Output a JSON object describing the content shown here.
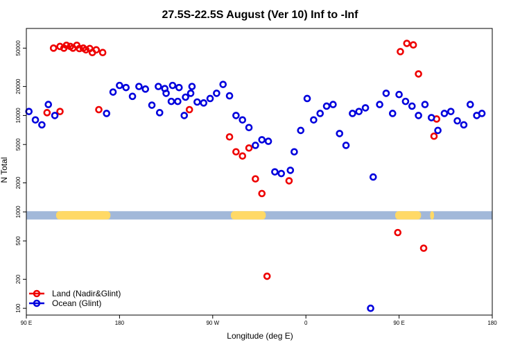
{
  "chart_data": {
    "type": "scatter",
    "title": "27.5S-22.5S August (Ver 10)   Inf to -Inf",
    "xlabel": "Longitude (deg E)",
    "ylabel": "N Total",
    "y_scale": "log",
    "ylim": [
      85,
      80000
    ],
    "x_ticks": [
      "90 E",
      "180",
      "90 W",
      "0",
      "90 E",
      "180"
    ],
    "y_ticks": [
      "100",
      "200",
      "500",
      "1000",
      "2000",
      "5000",
      "10000",
      "20000",
      "50000"
    ],
    "y_tick_values": [
      100,
      200,
      500,
      1000,
      2000,
      5000,
      10000,
      20000,
      50000
    ],
    "legend_position": "bottom-left",
    "land_band_color": "#ffd966",
    "ocean_band_color": "#a2b8d9",
    "series": [
      {
        "name": "Land (Nadir&Glint)",
        "color": "#ee0000",
        "points": [
          [
            106,
            10700
          ],
          [
            111,
            50000
          ],
          [
            116,
            52000
          ],
          [
            121,
            53500
          ],
          [
            126,
            50000
          ],
          [
            131,
            49500
          ],
          [
            136,
            48000
          ],
          [
            141,
            45000
          ],
          [
            146,
            11500
          ],
          [
            -113,
            6000
          ],
          [
            -108,
            4200
          ],
          [
            -103,
            3800
          ],
          [
            -98,
            4600
          ],
          [
            -93,
            2200
          ],
          [
            -88,
            1550
          ],
          [
            -84,
            215
          ],
          [
            -67,
            2100
          ],
          [
            17,
            610
          ],
          [
            19,
            46000
          ],
          [
            24,
            56000
          ],
          [
            29,
            54000
          ],
          [
            33,
            27000
          ],
          [
            37,
            420
          ],
          [
            45,
            6100
          ],
          [
            47,
            9200
          ],
          [
            116,
            11000
          ],
          [
            119,
            50000
          ],
          [
            124,
            52000
          ],
          [
            129,
            53500
          ],
          [
            134,
            50000
          ],
          [
            139,
            49500
          ],
          [
            144,
            48000
          ],
          [
            149,
            45000
          ],
          [
            -144,
            11500
          ]
        ]
      },
      {
        "name": "Ocean (Glint)",
        "color": "#0000dd",
        "points": [
          [
            92,
            11000
          ],
          [
            97,
            9000
          ],
          [
            102,
            8000
          ],
          [
            107,
            13000
          ],
          [
            112,
            10000
          ],
          [
            152,
            10500
          ],
          [
            157,
            17500
          ],
          [
            162,
            20500
          ],
          [
            167,
            19500
          ],
          [
            172,
            15800
          ],
          [
            177,
            20000
          ],
          [
            -178,
            18800
          ],
          [
            -173,
            12800
          ],
          [
            -168,
            20000
          ],
          [
            -163,
            19000
          ],
          [
            -158,
            14000
          ],
          [
            -153,
            14000
          ],
          [
            -148,
            10000
          ],
          [
            -143,
            17000
          ],
          [
            -138,
            13800
          ],
          [
            -133,
            13500
          ],
          [
            -128,
            15000
          ],
          [
            -123,
            17000
          ],
          [
            -118,
            21000
          ],
          [
            -113,
            16000
          ],
          [
            -108,
            10000
          ],
          [
            -103,
            9000
          ],
          [
            -98,
            7500
          ],
          [
            -93,
            4900
          ],
          [
            -88,
            5600
          ],
          [
            -83,
            5400
          ],
          [
            -78,
            2600
          ],
          [
            -73,
            2500
          ],
          [
            -66,
            2700
          ],
          [
            -63,
            4200
          ],
          [
            -58,
            7000
          ],
          [
            -53,
            15000
          ],
          [
            -48,
            9000
          ],
          [
            -43,
            10500
          ],
          [
            -38,
            12500
          ],
          [
            -33,
            13000
          ],
          [
            -28,
            6500
          ],
          [
            -23,
            4900
          ],
          [
            -18,
            10500
          ],
          [
            -13,
            11000
          ],
          [
            -8,
            12000
          ],
          [
            -4,
            100
          ],
          [
            -2,
            2300
          ],
          [
            3,
            13000
          ],
          [
            8,
            17000
          ],
          [
            13,
            10500
          ],
          [
            18,
            16500
          ],
          [
            23,
            14000
          ],
          [
            28,
            12500
          ],
          [
            33,
            10000
          ],
          [
            38,
            13000
          ],
          [
            43,
            9500
          ],
          [
            48,
            7000
          ],
          [
            53,
            10500
          ],
          [
            58,
            11000
          ],
          [
            63,
            8800
          ],
          [
            68,
            8000
          ],
          [
            73,
            13000
          ],
          [
            78,
            10000
          ],
          [
            82,
            10500
          ],
          [
            -167,
            10700
          ],
          [
            -162,
            17000
          ],
          [
            -157,
            20500
          ],
          [
            -152,
            19500
          ],
          [
            -147,
            15500
          ],
          [
            -142,
            20000
          ]
        ]
      }
    ],
    "land_spans": [
      [
        113,
        152
      ],
      [
        -112,
        -85
      ],
      [
        15,
        35
      ],
      [
        42,
        45
      ],
      [
        115,
        155
      ]
    ]
  }
}
